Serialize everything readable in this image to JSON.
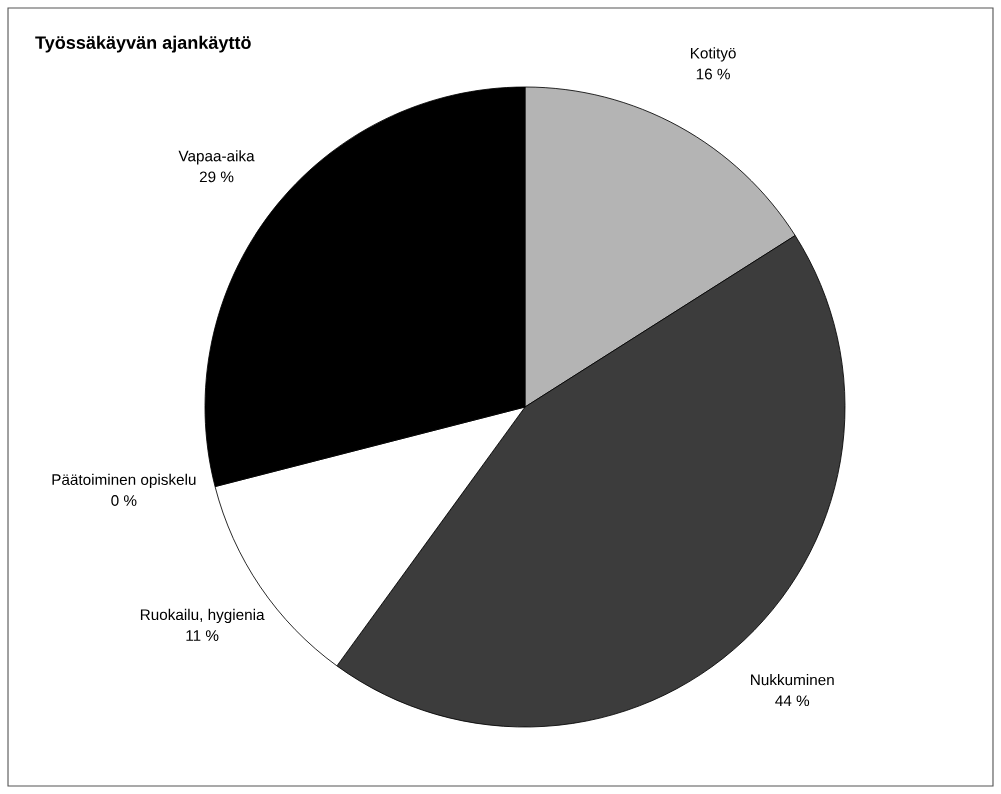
{
  "chart_data": {
    "type": "pie",
    "title": "Työssäkäyvän ajankäyttö",
    "categories": [
      "Kotityö",
      "Nukkuminen",
      "Ruokailu, hygienia",
      "Päätoiminen opiskelu",
      "Vapaa-aika"
    ],
    "values": [
      16,
      44,
      11,
      0,
      29
    ],
    "value_labels": [
      "16 %",
      "44 %",
      "11 %",
      "0 %",
      "29 %"
    ],
    "colors": [
      "#b4b4b4",
      "#3c3c3c",
      "#ffffff",
      "#808080",
      "#000000"
    ]
  }
}
